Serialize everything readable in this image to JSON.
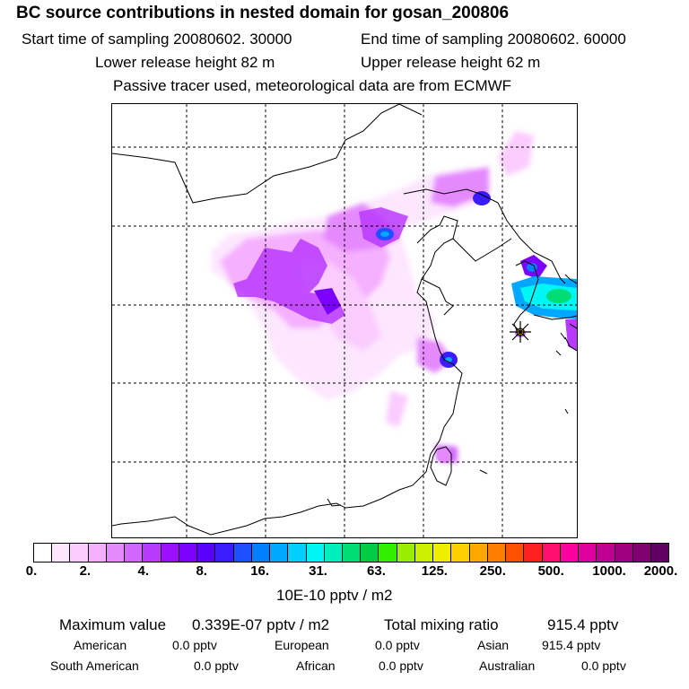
{
  "header": {
    "title": "BC  source contributions in nested domain for gosan_200806",
    "start_time": "Start time of sampling 20080602. 30000",
    "end_time": "End time of sampling 20080602. 60000",
    "lower_release": "Lower release height   82 m",
    "upper_release": "Upper release height   62 m",
    "tracer_note": "Passive tracer used, meteorological data are from ECMWF"
  },
  "colorbar": {
    "colors": [
      "#ffffff",
      "#fde6ff",
      "#fbccff",
      "#f5b0ff",
      "#e589ff",
      "#d266ff",
      "#b83aff",
      "#9c10ff",
      "#7c00ff",
      "#5a00ff",
      "#3a1cff",
      "#1e50ff",
      "#0080ff",
      "#00a8ff",
      "#00d0ff",
      "#00f5f5",
      "#00eebb",
      "#00dd77",
      "#00cc44",
      "#33ee00",
      "#99ee00",
      "#ccee00",
      "#f0ee00",
      "#ffd000",
      "#ffa800",
      "#ff8000",
      "#ff5000",
      "#ff2020",
      "#ff1070",
      "#ff00a0",
      "#e000a0",
      "#c00090",
      "#a00080",
      "#800070",
      "#600060"
    ],
    "tick_labels": [
      "0.",
      "2.",
      "4.",
      "8.",
      "16.",
      "31.",
      "63.",
      "125.",
      "250.",
      "500.",
      "1000.",
      "2000."
    ],
    "units": "10E-10 pptv / m2"
  },
  "stats": {
    "max_label": "Maximum value",
    "max_value": "0.339E-07 pptv / m2",
    "total_label": "Total mixing ratio",
    "total_value": "915.4 pptv"
  },
  "regions": [
    {
      "name": "American",
      "value": "0.0 pptv"
    },
    {
      "name": "European",
      "value": "0.0 pptv"
    },
    {
      "name": "Asian",
      "value": "915.4 pptv"
    },
    {
      "name": "South American",
      "value": "0.0 pptv"
    },
    {
      "name": "African",
      "value": "0.0 pptv"
    },
    {
      "name": "Australian",
      "value": "0.0 pptv"
    }
  ],
  "receptor": {
    "name": "Gosan",
    "marker_color": "#ffd000"
  }
}
